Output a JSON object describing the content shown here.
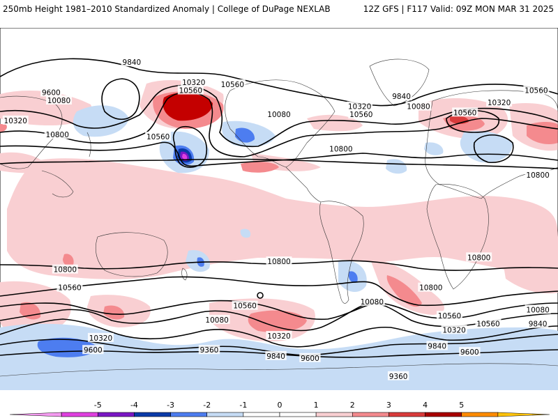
{
  "header": {
    "left": "250mb Height 1981–2010 Standardized Anomaly | College of DuPage NEXLAB",
    "right": "12Z GFS | F117 Valid: 09Z MON MAR 31 2025"
  },
  "map_data": {
    "contour_labels": [
      {
        "text": "9840",
        "lon": 145,
        "lat": 73
      },
      {
        "text": "10320",
        "lon": -175,
        "lat": 63
      },
      {
        "text": "10560",
        "lon": -177,
        "lat": 59
      },
      {
        "text": "10560",
        "lon": -150,
        "lat": 62
      },
      {
        "text": "9600",
        "lon": 93,
        "lat": 58
      },
      {
        "text": "10080",
        "lon": 98,
        "lat": 54
      },
      {
        "text": "10320",
        "lon": 22,
        "lat": 53
      },
      {
        "text": "10560",
        "lon": 0,
        "lat": 48
      },
      {
        "text": "10800",
        "lon": 97,
        "lat": 37
      },
      {
        "text": "10560",
        "lon": 162,
        "lat": 36
      },
      {
        "text": "10080",
        "lon": -120,
        "lat": 47
      },
      {
        "text": "10800",
        "lon": -80,
        "lat": 30
      },
      {
        "text": "10320",
        "lon": -68,
        "lat": 51
      },
      {
        "text": "10560",
        "lon": -67,
        "lat": 47
      },
      {
        "text": "9840",
        "lon": -41,
        "lat": 56
      },
      {
        "text": "10080",
        "lon": -30,
        "lat": 51
      },
      {
        "text": "10560",
        "lon": 46,
        "lat": 59
      },
      {
        "text": "10320",
        "lon": 70,
        "lat": 44
      },
      {
        "text": "10800",
        "lon": 47,
        "lat": 17
      },
      {
        "text": "10800",
        "lon": 9,
        "lat": -24
      },
      {
        "text": "10800",
        "lon": 102,
        "lat": -30
      },
      {
        "text": "10560",
        "lon": 105,
        "lat": -39
      },
      {
        "text": "10080",
        "lon": 47,
        "lat": -50
      },
      {
        "text": "9840",
        "lon": 47,
        "lat": -57
      },
      {
        "text": "10560",
        "lon": 15,
        "lat": -57
      },
      {
        "text": "10320",
        "lon": 125,
        "lat": -64
      },
      {
        "text": "9600",
        "lon": 120,
        "lat": -70
      },
      {
        "text": "10800",
        "lon": -120,
        "lat": -26
      },
      {
        "text": "10560",
        "lon": -142,
        "lat": -48
      },
      {
        "text": "10080",
        "lon": -160,
        "lat": -55
      },
      {
        "text": "10320",
        "lon": -120,
        "lat": -63
      },
      {
        "text": "9360",
        "lon": -165,
        "lat": -70
      },
      {
        "text": "9840",
        "lon": -122,
        "lat": -73
      },
      {
        "text": "9600",
        "lon": -100,
        "lat": -74
      },
      {
        "text": "10080",
        "lon": -60,
        "lat": -46
      },
      {
        "text": "10560",
        "lon": -10,
        "lat": -53
      },
      {
        "text": "10320",
        "lon": -7,
        "lat": -60
      },
      {
        "text": "10800",
        "lon": -22,
        "lat": -39
      },
      {
        "text": "9840",
        "lon": -18,
        "lat": -68
      },
      {
        "text": "9600",
        "lon": 3,
        "lat": -71
      },
      {
        "text": "9360",
        "lon": -43,
        "lat": -83
      }
    ],
    "anomaly_colors": {
      "-5": "#e040e0",
      "-4": "#7a17c4",
      "-3": "#0a3aa8",
      "-2": "#4d7df0",
      "-1": "#c6dcf5",
      "0": "#ffffff",
      "1": "#f9cfd2",
      "2": "#f48a8e",
      "3": "#c40000",
      "4": "#ff8c00",
      "5": "#ffc30b"
    }
  },
  "colorbar": {
    "ticks": [
      "-5",
      "-4",
      "-3",
      "-2",
      "-1",
      "0",
      "1",
      "2",
      "3",
      "4",
      "5"
    ],
    "colors": [
      "#f49af0",
      "#e040e0",
      "#7a17c4",
      "#0a3aa8",
      "#4d7df0",
      "#c6dcf5",
      "#ffffff",
      "#ffffff",
      "#f9cfd2",
      "#f48a8e",
      "#d93b3b",
      "#a80000",
      "#ff8c00",
      "#ffc30b"
    ]
  }
}
